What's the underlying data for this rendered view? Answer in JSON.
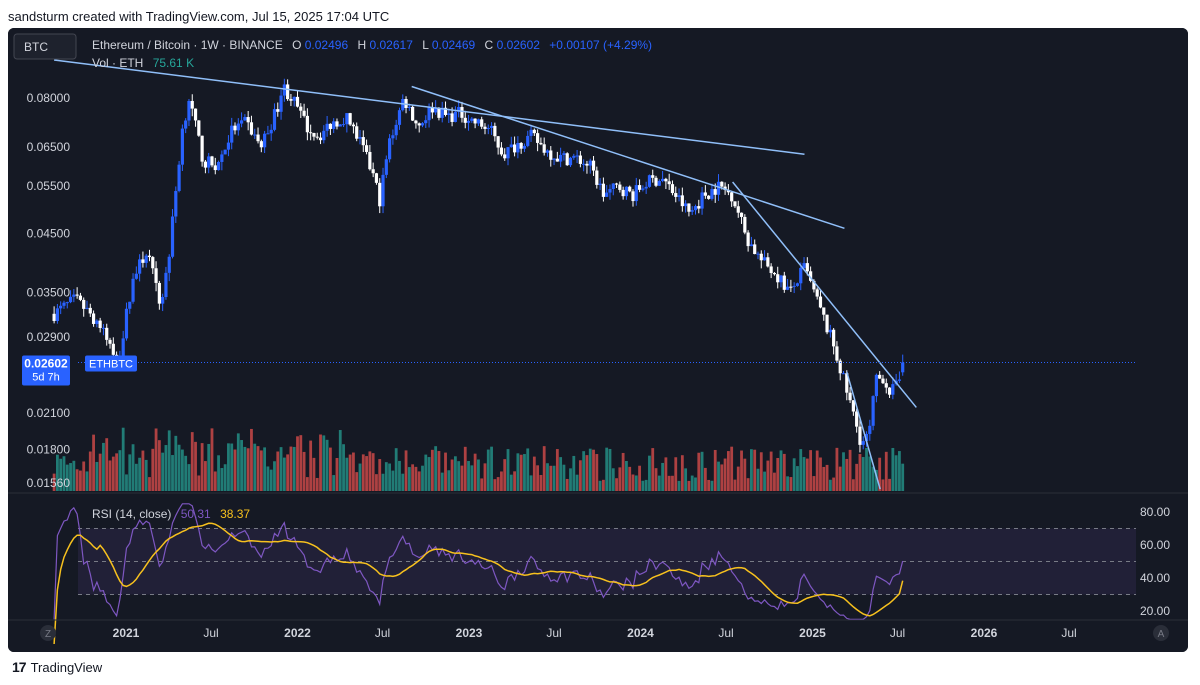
{
  "header": {
    "caption": "sandsturm created with TradingView.com, Jul 15, 2025 17:04 UTC"
  },
  "footer": {
    "brand": "TradingView",
    "logo_icon": "tradingview-logo-icon"
  },
  "toolbar": {
    "symbol_box": "BTC",
    "z_button": "Z",
    "a_button": "A"
  },
  "legend": {
    "title": "Ethereum / Bitcoin · 1W · BINANCE",
    "o_label": "O",
    "o_value": "0.02496",
    "h_label": "H",
    "h_value": "0.02617",
    "l_label": "L",
    "l_value": "0.02469",
    "c_label": "C",
    "c_value": "0.02602",
    "change": "+0.00107 (+4.29%)",
    "vol_label": "Vol · ETH",
    "vol_value": "75.61 K"
  },
  "price_tag": {
    "price": "0.02602",
    "countdown": "5d 7h",
    "symbol": "ETHBTC"
  },
  "rsi_legend": {
    "label": "RSI (14, close)",
    "rsi_value": "50.31",
    "ma_value": "38.37"
  },
  "colors": {
    "background": "#151924",
    "up": "#2962ff",
    "down": "#ffffff",
    "trendline": "#90bff9",
    "rsi_line": "#7e57c2",
    "rsi_ma": "#f7c11e",
    "vol_up": "#26a69a",
    "vol_down": "#ef5350",
    "price_tag": "#2962ff"
  },
  "chart_data": [
    {
      "type": "candlestick",
      "title": "Ethereum / Bitcoin · 1W · BINANCE",
      "scale": "log",
      "y_ticks": [
        0.08,
        0.065,
        0.055,
        0.045,
        0.035,
        0.029,
        0.021,
        0.018,
        0.0156
      ],
      "y_tick_labels": [
        "0.08000",
        "0.06500",
        "0.05500",
        "0.04500",
        "0.03500",
        "0.02900",
        "0.02100",
        "0.01800",
        "0.01560"
      ],
      "x_tick_labels": [
        "2021",
        "Jul",
        "2022",
        "Jul",
        "2023",
        "Jul",
        "2024",
        "Jul",
        "2025",
        "Jul",
        "2026",
        "Jul"
      ],
      "x_tick_dates": [
        "2021-01-01",
        "2021-07-01",
        "2022-01-01",
        "2022-07-01",
        "2023-01-01",
        "2023-07-01",
        "2024-01-01",
        "2024-07-01",
        "2025-01-01",
        "2025-07-01",
        "2026-01-01",
        "2026-07-01"
      ],
      "close_path": [
        [
          "2020-08-01",
          0.032
        ],
        [
          "2020-09-15",
          0.034
        ],
        [
          "2020-11-01",
          0.031
        ],
        [
          "2020-12-15",
          0.026
        ],
        [
          "2021-01-15",
          0.037
        ],
        [
          "2021-02-15",
          0.042
        ],
        [
          "2021-03-15",
          0.033
        ],
        [
          "2021-04-01",
          0.04
        ],
        [
          "2021-05-01",
          0.07
        ],
        [
          "2021-05-15",
          0.08
        ],
        [
          "2021-06-15",
          0.061
        ],
        [
          "2021-07-15",
          0.06
        ],
        [
          "2021-08-15",
          0.07
        ],
        [
          "2021-09-15",
          0.072
        ],
        [
          "2021-10-15",
          0.065
        ],
        [
          "2021-11-15",
          0.075
        ],
        [
          "2021-12-01",
          0.084
        ],
        [
          "2021-12-20",
          0.08
        ],
        [
          "2022-01-20",
          0.071
        ],
        [
          "2022-02-15",
          0.068
        ],
        [
          "2022-03-15",
          0.072
        ],
        [
          "2022-04-15",
          0.074
        ],
        [
          "2022-05-15",
          0.066
        ],
        [
          "2022-06-10",
          0.058
        ],
        [
          "2022-06-25",
          0.052
        ],
        [
          "2022-07-15",
          0.066
        ],
        [
          "2022-08-15",
          0.08
        ],
        [
          "2022-09-15",
          0.071
        ],
        [
          "2022-10-15",
          0.077
        ],
        [
          "2022-11-15",
          0.074
        ],
        [
          "2022-12-15",
          0.075
        ],
        [
          "2023-01-15",
          0.072
        ],
        [
          "2023-02-15",
          0.07
        ],
        [
          "2023-03-15",
          0.063
        ],
        [
          "2023-04-15",
          0.066
        ],
        [
          "2023-05-15",
          0.068
        ],
        [
          "2023-06-15",
          0.064
        ],
        [
          "2023-07-15",
          0.062
        ],
        [
          "2023-08-15",
          0.062
        ],
        [
          "2023-09-15",
          0.06
        ],
        [
          "2023-10-15",
          0.053
        ],
        [
          "2023-11-15",
          0.055
        ],
        [
          "2023-12-15",
          0.053
        ],
        [
          "2024-01-15",
          0.056
        ],
        [
          "2024-02-15",
          0.057
        ],
        [
          "2024-03-15",
          0.053
        ],
        [
          "2024-04-15",
          0.049
        ],
        [
          "2024-05-15",
          0.053
        ],
        [
          "2024-06-15",
          0.055
        ],
        [
          "2024-07-15",
          0.053
        ],
        [
          "2024-08-15",
          0.044
        ],
        [
          "2024-09-15",
          0.04
        ],
        [
          "2024-10-15",
          0.038
        ],
        [
          "2024-11-15",
          0.035
        ],
        [
          "2024-12-15",
          0.039
        ],
        [
          "2025-01-15",
          0.033
        ],
        [
          "2025-02-15",
          0.028
        ],
        [
          "2025-03-15",
          0.023
        ],
        [
          "2025-04-15",
          0.0185
        ],
        [
          "2025-05-01",
          0.019
        ],
        [
          "2025-05-15",
          0.024
        ],
        [
          "2025-06-01",
          0.0245
        ],
        [
          "2025-06-15",
          0.023
        ],
        [
          "2025-07-01",
          0.0235
        ],
        [
          "2025-07-15",
          0.02602
        ]
      ],
      "last_ohlc": {
        "open": 0.02496,
        "high": 0.02617,
        "low": 0.02469,
        "close": 0.02602
      },
      "trendlines": [
        {
          "from": [
            "2020-08-01",
            0.094
          ],
          "to": [
            "2024-12-15",
            0.063
          ]
        },
        {
          "from": [
            "2022-09-01",
            0.084
          ],
          "to": [
            "2025-03-10",
            0.046
          ]
        },
        {
          "from": [
            "2024-07-15",
            0.056
          ],
          "to": [
            "2025-08-10",
            0.0215
          ]
        },
        {
          "from": [
            "2025-03-15",
            0.025
          ],
          "to": [
            "2025-05-25",
            0.0152
          ]
        }
      ]
    },
    {
      "type": "bar",
      "title": "Vol · ETH",
      "value_shown": "75.61 K"
    },
    {
      "type": "line",
      "title": "RSI (14, close)",
      "y_ticks": [
        80,
        60,
        40,
        20
      ],
      "y_tick_labels": [
        "80.00",
        "60.00",
        "40.00",
        "20.00"
      ],
      "bands": {
        "upper": 70,
        "middle": 50,
        "lower": 30
      },
      "last_rsi": 50.31,
      "last_ma": 38.37
    }
  ]
}
